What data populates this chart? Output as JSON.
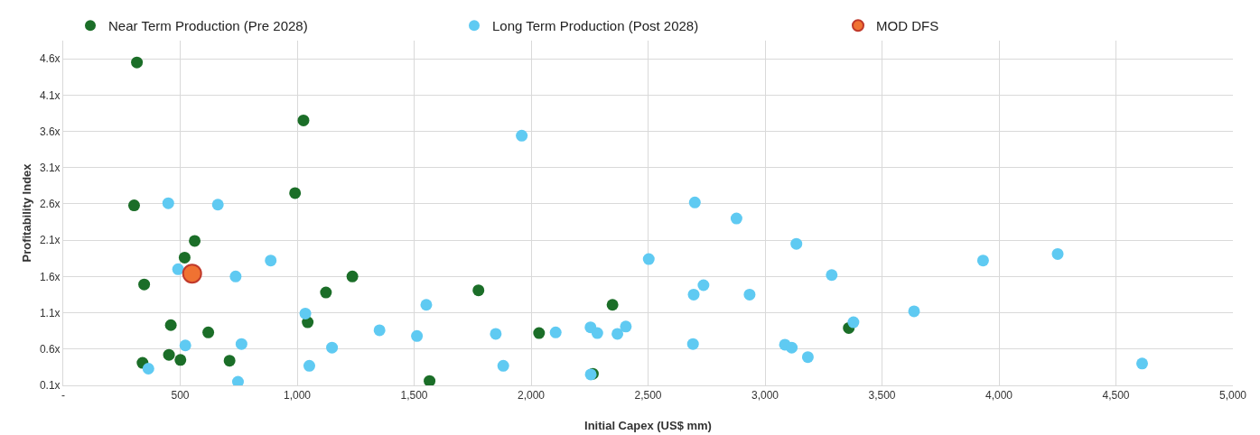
{
  "chart_data": {
    "type": "scatter",
    "xlabel": "Initial Capex (US$ mm)",
    "ylabel": "Profitability Index",
    "xlim": [
      0,
      5000
    ],
    "ylim": [
      0.1,
      4.85
    ],
    "xticks": [
      {
        "value": 0,
        "label": "-"
      },
      500,
      {
        "value": 1000,
        "label": "1,000"
      },
      {
        "value": 1500,
        "label": "1,500"
      },
      {
        "value": 2000,
        "label": "2,000"
      },
      {
        "value": 2500,
        "label": "2,500"
      },
      {
        "value": 3000,
        "label": "3,000"
      },
      {
        "value": 3500,
        "label": "3,500"
      },
      {
        "value": 4000,
        "label": "4,000"
      },
      {
        "value": 4500,
        "label": "4,500"
      },
      {
        "value": 5000,
        "label": "5,000"
      }
    ],
    "yticks": [
      {
        "value": 0.1,
        "label": "0.1x"
      },
      {
        "value": 0.6,
        "label": "0.6x"
      },
      {
        "value": 1.1,
        "label": "1.1x"
      },
      {
        "value": 1.6,
        "label": "1.6x"
      },
      {
        "value": 2.1,
        "label": "2.1x"
      },
      {
        "value": 2.6,
        "label": "2.6x"
      },
      {
        "value": 3.1,
        "label": "3.1x"
      },
      {
        "value": 3.6,
        "label": "3.6x"
      },
      {
        "value": 4.1,
        "label": "4.1x"
      },
      {
        "value": 4.6,
        "label": "4.6x"
      }
    ],
    "grid": true,
    "legend": "top",
    "marker": "circle",
    "series": [
      {
        "name": "Near Term Production (Pre 2028)",
        "color": "#1b6e28",
        "x": [
          315,
          1027,
          991,
          303,
          562,
          519,
          346,
          1236,
          1123,
          1775,
          460,
          1045,
          620,
          452,
          501,
          339,
          711,
          1566,
          2034,
          2348,
          2264,
          3358
        ],
        "values": [
          4.55,
          3.75,
          2.75,
          2.58,
          2.09,
          1.86,
          1.49,
          1.6,
          1.38,
          1.41,
          0.93,
          0.97,
          0.83,
          0.52,
          0.45,
          0.41,
          0.44,
          0.16,
          0.82,
          1.21,
          0.26,
          0.89
        ]
      },
      {
        "name": "Long Term Production (Post 2028)",
        "color": "#5fcaf2",
        "x": [
          449,
          661,
          887,
          491,
          737,
          1035,
          1552,
          1352,
          1512,
          522,
          762,
          1149,
          364,
          1052,
          747,
          1960,
          1849,
          1881,
          2105,
          2254,
          2283,
          2369,
          2405,
          2255,
          2503,
          2700,
          2878,
          3134,
          3285,
          2737,
          2695,
          2934,
          2692,
          3085,
          3114,
          3183,
          3378,
          3637,
          3932,
          4251,
          4612
        ],
        "values": [
          2.61,
          2.59,
          1.82,
          1.7,
          1.6,
          1.09,
          1.21,
          0.86,
          0.78,
          0.65,
          0.67,
          0.62,
          0.33,
          0.37,
          0.15,
          3.54,
          0.81,
          0.37,
          0.83,
          0.9,
          0.82,
          0.81,
          0.91,
          0.25,
          1.84,
          2.62,
          2.4,
          2.05,
          1.62,
          1.48,
          1.35,
          1.35,
          0.67,
          0.66,
          0.62,
          0.49,
          0.97,
          1.12,
          1.82,
          1.91,
          0.4
        ]
      },
      {
        "name": "MOD DFS",
        "color": "#f07232",
        "x": [
          551
        ],
        "values": [
          1.64
        ]
      }
    ]
  }
}
